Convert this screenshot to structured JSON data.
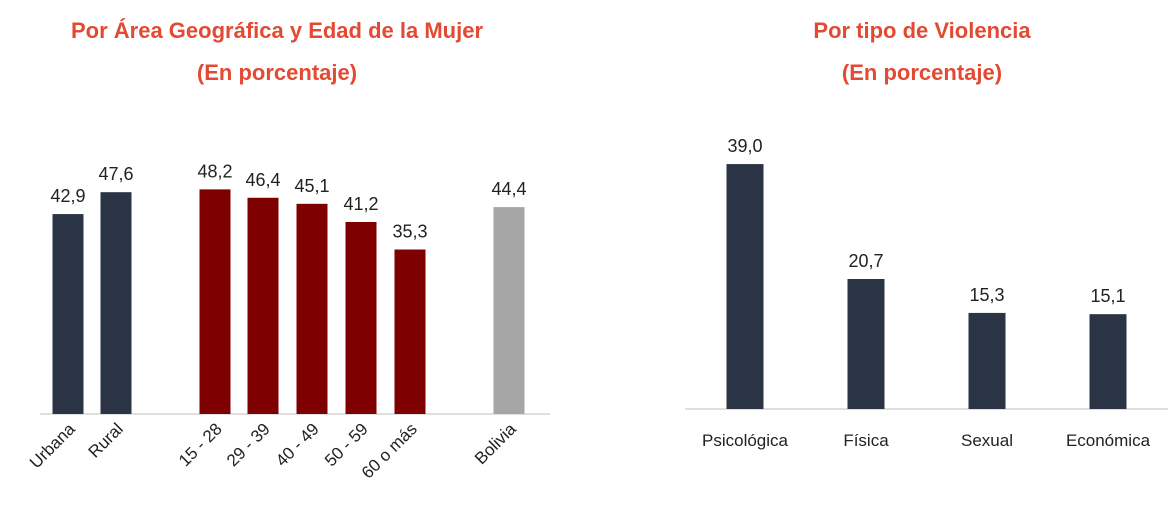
{
  "chart_data": [
    {
      "type": "bar",
      "title": "Por Área Geográfica y Edad de la Mujer",
      "subtitle": "(En porcentaje)",
      "categories": [
        "Urbana",
        "Rural",
        "15 - 28",
        "29 - 39",
        "40 - 49",
        "50 - 59",
        "60 o más",
        "Bolivia"
      ],
      "values": [
        42.9,
        47.6,
        48.2,
        46.4,
        45.1,
        41.2,
        35.3,
        44.4
      ],
      "value_labels": [
        "42,9",
        "47,6",
        "48,2",
        "46,4",
        "45,1",
        "41,2",
        "35,3",
        "44,4"
      ],
      "colors": [
        "#2b3445",
        "#2b3445",
        "#7f0000",
        "#7f0000",
        "#7f0000",
        "#7f0000",
        "#7f0000",
        "#a6a6a6"
      ]
    },
    {
      "type": "bar",
      "title": "Por tipo de Violencia",
      "subtitle": "(En porcentaje)",
      "categories": [
        "Psicológica",
        "Física",
        "Sexual",
        "Económica"
      ],
      "values": [
        39.0,
        20.7,
        15.3,
        15.1
      ],
      "value_labels": [
        "39,0",
        "20,7",
        "15,3",
        "15,1"
      ],
      "colors": [
        "#2b3445",
        "#2b3445",
        "#2b3445",
        "#2b3445"
      ]
    }
  ]
}
